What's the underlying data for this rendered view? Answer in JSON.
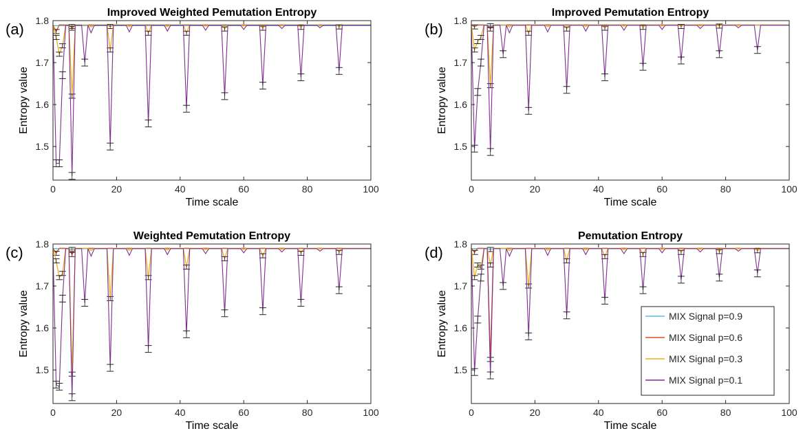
{
  "figure": {
    "legend_title": "",
    "colors": {
      "p09": "#4DBEEE",
      "p06": "#D95319",
      "p03": "#EDB120",
      "p01": "#7E2F8E",
      "axis": "#262626"
    }
  },
  "legend": {
    "entries": [
      "MIX Signal p=0.9",
      "MIX Signal p=0.6",
      "MIX Signal p=0.3",
      "MIX Signal p=0.1"
    ],
    "placement": "inside-right of panel (d)"
  },
  "chart_data": [
    {
      "panel": "(a)",
      "type": "line",
      "title": "Improved Weighted Pemutation Entropy",
      "xlabel": "Time scale",
      "ylabel": "Entropy value",
      "xlim": [
        0,
        100
      ],
      "ylim": [
        1.42,
        1.8
      ],
      "xticks": [
        "0",
        "20",
        "40",
        "60",
        "80",
        "100"
      ],
      "yticks": [
        "1.5",
        "1.6",
        "1.7",
        "1.8"
      ],
      "error_bars": true,
      "series": [
        {
          "name": "MIX Signal p=0.9",
          "baseline": 1.788,
          "dips": [
            [
              6,
              1.786
            ]
          ]
        },
        {
          "name": "MIX Signal p=0.6",
          "baseline": 1.79,
          "dips": [
            [
              1,
              1.774
            ],
            [
              6,
              1.782
            ],
            [
              18,
              1.786
            ]
          ]
        },
        {
          "name": "MIX Signal p=0.3",
          "baseline": 1.79,
          "dips": [
            [
              1,
              1.76
            ],
            [
              2,
              1.72
            ],
            [
              3,
              1.74
            ],
            [
              6,
              1.62
            ],
            [
              18,
              1.73
            ],
            [
              30,
              1.77
            ],
            [
              42,
              1.77
            ],
            [
              54,
              1.78
            ],
            [
              66,
              1.782
            ],
            [
              78,
              1.784
            ],
            [
              90,
              1.785
            ]
          ]
        },
        {
          "name": "MIX Signal p=0.1",
          "baseline": 1.789,
          "dips": [
            [
              1,
              1.46
            ],
            [
              2,
              1.46
            ],
            [
              3,
              1.67
            ],
            [
              6,
              1.43
            ],
            [
              10,
              1.7
            ],
            [
              18,
              1.5
            ],
            [
              30,
              1.555
            ],
            [
              42,
              1.59
            ],
            [
              54,
              1.62
            ],
            [
              66,
              1.645
            ],
            [
              78,
              1.665
            ],
            [
              90,
              1.68
            ]
          ]
        }
      ]
    },
    {
      "panel": "(b)",
      "type": "line",
      "title": "Improved Pemutation Entropy",
      "xlabel": "Time scale",
      "ylabel": "Entropy value",
      "xlim": [
        0,
        100
      ],
      "ylim": [
        1.42,
        1.8
      ],
      "xticks": [
        "0",
        "20",
        "40",
        "60",
        "80",
        "100"
      ],
      "yticks": [
        "1.5",
        "1.6",
        "1.7",
        "1.8"
      ],
      "error_bars": true,
      "series": [
        {
          "name": "MIX Signal p=0.9",
          "baseline": 1.789,
          "dips": [
            [
              6,
              1.788
            ]
          ]
        },
        {
          "name": "MIX Signal p=0.6",
          "baseline": 1.79,
          "dips": [
            [
              1,
              1.785
            ],
            [
              6,
              1.78
            ]
          ]
        },
        {
          "name": "MIX Signal p=0.3",
          "baseline": 1.79,
          "dips": [
            [
              1,
              1.73
            ],
            [
              2,
              1.75
            ],
            [
              3,
              1.76
            ],
            [
              6,
              1.645
            ],
            [
              18,
              1.77
            ],
            [
              30,
              1.78
            ],
            [
              42,
              1.782
            ],
            [
              54,
              1.784
            ],
            [
              66,
              1.786
            ],
            [
              78,
              1.787
            ]
          ]
        },
        {
          "name": "MIX Signal p=0.1",
          "baseline": 1.789,
          "dips": [
            [
              1,
              1.495
            ],
            [
              2,
              1.63
            ],
            [
              3,
              1.7
            ],
            [
              6,
              1.487
            ],
            [
              10,
              1.72
            ],
            [
              18,
              1.585
            ],
            [
              30,
              1.635
            ],
            [
              42,
              1.665
            ],
            [
              54,
              1.69
            ],
            [
              66,
              1.705
            ],
            [
              78,
              1.72
            ],
            [
              90,
              1.73
            ]
          ]
        }
      ]
    },
    {
      "panel": "(c)",
      "type": "line",
      "title": "Weighted Pemutation Entropy",
      "xlabel": "Time scale",
      "ylabel": "Entropy value",
      "xlim": [
        0,
        100
      ],
      "ylim": [
        1.42,
        1.8
      ],
      "xticks": [
        "0",
        "20",
        "40",
        "60",
        "80",
        "100"
      ],
      "yticks": [
        "1.5",
        "1.6",
        "1.7",
        "1.8"
      ],
      "error_bars": true,
      "series": [
        {
          "name": "MIX Signal p=0.9",
          "baseline": 1.789,
          "dips": [
            [
              6,
              1.787
            ]
          ]
        },
        {
          "name": "MIX Signal p=0.6",
          "baseline": 1.79,
          "dips": [
            [
              1,
              1.778
            ],
            [
              6,
              1.775
            ]
          ]
        },
        {
          "name": "MIX Signal p=0.3",
          "baseline": 1.79,
          "dips": [
            [
              1,
              1.76
            ],
            [
              2,
              1.72
            ],
            [
              3,
              1.73
            ],
            [
              6,
              1.49
            ],
            [
              18,
              1.67
            ],
            [
              30,
              1.72
            ],
            [
              42,
              1.745
            ],
            [
              54,
              1.765
            ],
            [
              66,
              1.772
            ],
            [
              78,
              1.778
            ],
            [
              90,
              1.78
            ]
          ]
        },
        {
          "name": "MIX Signal p=0.1",
          "baseline": 1.789,
          "dips": [
            [
              1,
              1.465
            ],
            [
              2,
              1.46
            ],
            [
              3,
              1.67
            ],
            [
              6,
              1.435
            ],
            [
              10,
              1.66
            ],
            [
              18,
              1.505
            ],
            [
              30,
              1.55
            ],
            [
              42,
              1.585
            ],
            [
              54,
              1.635
            ],
            [
              66,
              1.64
            ],
            [
              78,
              1.66
            ],
            [
              90,
              1.69
            ]
          ]
        }
      ]
    },
    {
      "panel": "(d)",
      "type": "line",
      "title": "Pemutation Entropy",
      "xlabel": "Time scale",
      "ylabel": "Entropy value",
      "xlim": [
        0,
        100
      ],
      "ylim": [
        1.42,
        1.8
      ],
      "xticks": [
        "0",
        "20",
        "40",
        "60",
        "80",
        "100"
      ],
      "yticks": [
        "1.5",
        "1.6",
        "1.7",
        "1.8"
      ],
      "error_bars": true,
      "series": [
        {
          "name": "MIX Signal p=0.9",
          "baseline": 1.789,
          "dips": [
            [
              6,
              1.787
            ]
          ]
        },
        {
          "name": "MIX Signal p=0.6",
          "baseline": 1.79,
          "dips": [
            [
              1,
              1.78
            ],
            [
              6,
              1.525
            ]
          ]
        },
        {
          "name": "MIX Signal p=0.3",
          "baseline": 1.79,
          "dips": [
            [
              1,
              1.72
            ],
            [
              2,
              1.75
            ],
            [
              3,
              1.745
            ],
            [
              6,
              1.75
            ],
            [
              18,
              1.7
            ],
            [
              30,
              1.76
            ],
            [
              42,
              1.77
            ],
            [
              54,
              1.775
            ],
            [
              66,
              1.78
            ],
            [
              78,
              1.782
            ],
            [
              90,
              1.784
            ]
          ]
        },
        {
          "name": "MIX Signal p=0.1",
          "baseline": 1.789,
          "dips": [
            [
              1,
              1.495
            ],
            [
              2,
              1.62
            ],
            [
              3,
              1.72
            ],
            [
              6,
              1.487
            ],
            [
              10,
              1.7
            ],
            [
              18,
              1.58
            ],
            [
              30,
              1.63
            ],
            [
              42,
              1.665
            ],
            [
              54,
              1.69
            ],
            [
              66,
              1.715
            ],
            [
              78,
              1.72
            ],
            [
              90,
              1.73
            ]
          ]
        }
      ]
    }
  ]
}
